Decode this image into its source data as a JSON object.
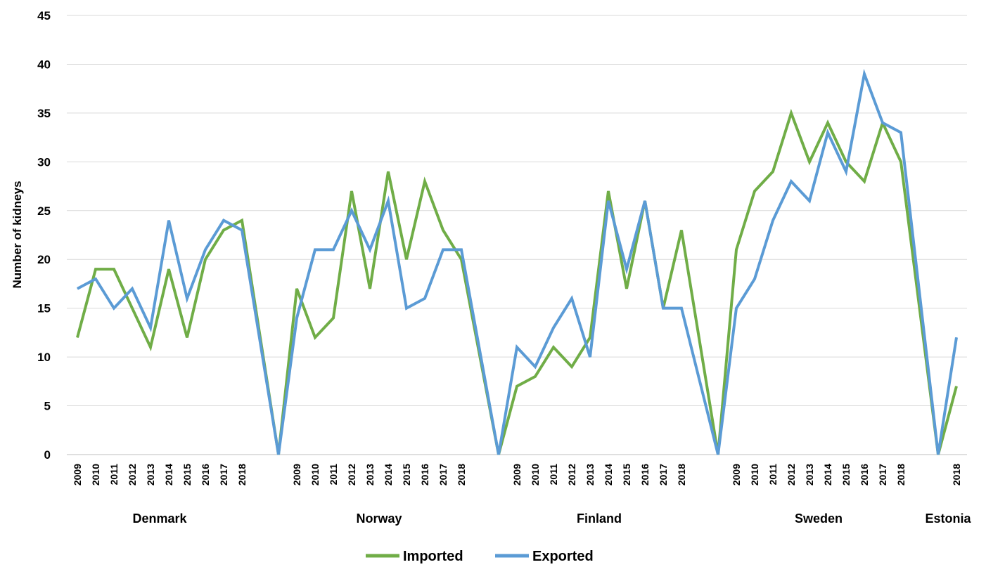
{
  "chart_data": {
    "type": "line",
    "ylabel": "Number of kidneys",
    "ylim": [
      0,
      45
    ],
    "yticks": [
      0,
      5,
      10,
      15,
      20,
      25,
      30,
      35,
      40,
      45
    ],
    "grid": true,
    "legend_position": "bottom",
    "colors": {
      "Imported": "#70ad47",
      "Exported": "#5b9bd5"
    },
    "groups": [
      {
        "name": "Denmark",
        "years": [
          "2009",
          "2010",
          "2011",
          "2012",
          "2013",
          "2014",
          "2015",
          "2016",
          "2017",
          "2018"
        ]
      },
      {
        "name": "Norway",
        "years": [
          "2009",
          "2010",
          "2011",
          "2012",
          "2013",
          "2014",
          "2015",
          "2016",
          "2017",
          "2018"
        ]
      },
      {
        "name": "Finland",
        "years": [
          "2009",
          "2010",
          "2011",
          "2012",
          "2013",
          "2014",
          "2015",
          "2016",
          "2017",
          "2018"
        ]
      },
      {
        "name": "Sweden",
        "years": [
          "2009",
          "2010",
          "2011",
          "2012",
          "2013",
          "2014",
          "2015",
          "2016",
          "2017",
          "2018"
        ]
      },
      {
        "name": "Estonia",
        "years": [
          "2018"
        ]
      }
    ],
    "series": [
      {
        "name": "Imported",
        "values": [
          [
            12,
            19,
            19,
            15,
            11,
            19,
            12,
            20,
            23,
            24
          ],
          [
            17,
            12,
            14,
            27,
            17,
            29,
            20,
            28,
            23,
            20
          ],
          [
            7,
            8,
            11,
            9,
            12,
            27,
            17,
            26,
            15,
            23
          ],
          [
            21,
            27,
            29,
            35,
            30,
            34,
            30,
            28,
            34,
            30
          ],
          [
            7
          ]
        ]
      },
      {
        "name": "Exported",
        "values": [
          [
            17,
            18,
            15,
            17,
            13,
            24,
            16,
            21,
            24,
            23
          ],
          [
            14,
            21,
            21,
            25,
            21,
            26,
            15,
            16,
            21,
            21
          ],
          [
            11,
            9,
            13,
            16,
            10,
            26,
            19,
            26,
            15,
            15
          ],
          [
            15,
            18,
            24,
            28,
            26,
            33,
            29,
            39,
            34,
            33
          ],
          [
            12
          ]
        ]
      }
    ]
  }
}
